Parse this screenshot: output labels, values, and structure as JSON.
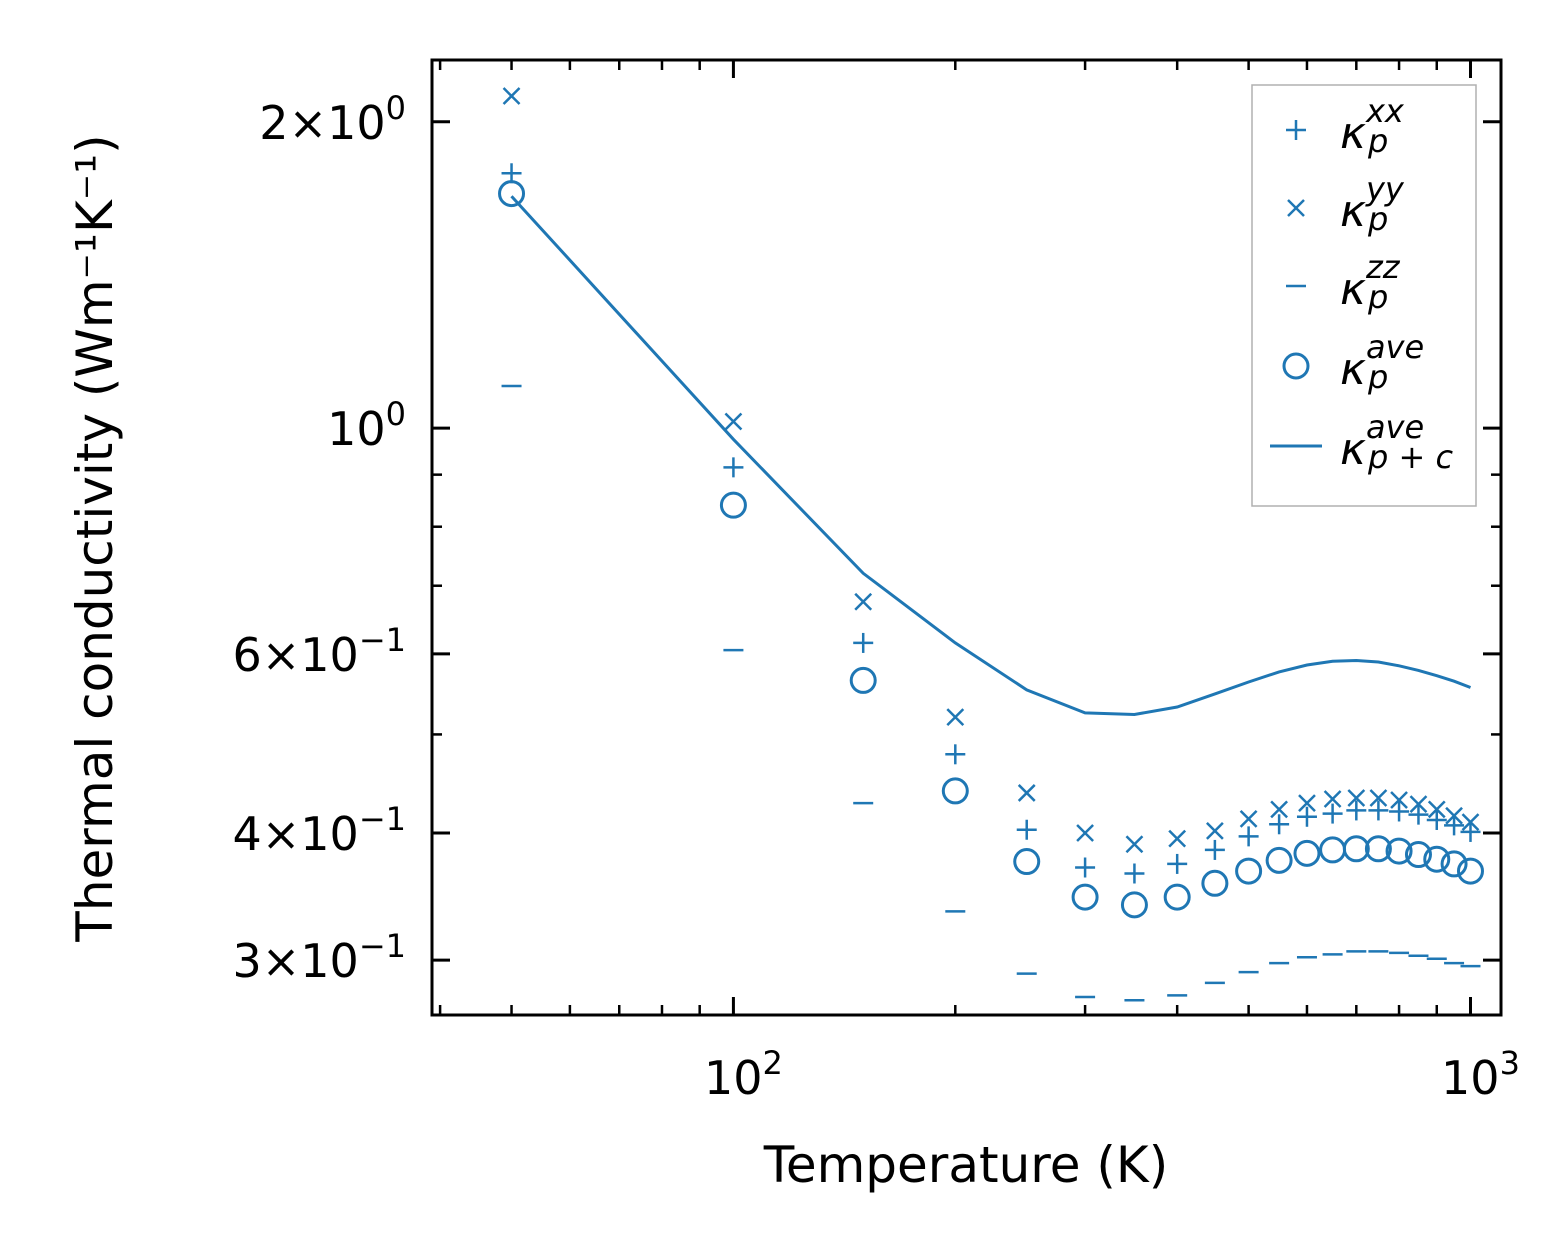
{
  "chart_data": {
    "type": "scatter",
    "title": "",
    "xlabel": "Temperature (K)",
    "ylabel": "Thermal conductivity (Wm⁻¹K⁻¹)",
    "xscale": "log",
    "yscale": "log",
    "xlim": [
      39,
      1100
    ],
    "ylim": [
      0.265,
      2.3
    ],
    "x_major_ticks": [
      {
        "value": 100,
        "base": "10",
        "exp": "2"
      },
      {
        "value": 1000,
        "base": "10",
        "exp": "3"
      }
    ],
    "y_labeled_ticks": [
      {
        "value": 2.0,
        "mant": "2",
        "base": "10",
        "exp": "0"
      },
      {
        "value": 1.0,
        "mant": "",
        "base": "10",
        "exp": "0"
      },
      {
        "value": 0.6,
        "mant": "6",
        "base": "10",
        "exp": "−1"
      },
      {
        "value": 0.4,
        "mant": "4",
        "base": "10",
        "exp": "−1"
      },
      {
        "value": 0.3,
        "mant": "3",
        "base": "10",
        "exp": "−1"
      }
    ],
    "x": [
      50,
      100,
      150,
      200,
      250,
      300,
      350,
      400,
      450,
      500,
      550,
      600,
      650,
      700,
      750,
      800,
      850,
      900,
      950,
      1000
    ],
    "color": "#1f77b4",
    "series": [
      {
        "name": "xx",
        "label_base": "κ",
        "label_sub": "p",
        "label_sup": "xx",
        "marker": "plus",
        "values": [
          1.78,
          0.915,
          0.615,
          0.478,
          0.403,
          0.37,
          0.365,
          0.373,
          0.385,
          0.397,
          0.408,
          0.415,
          0.418,
          0.421,
          0.421,
          0.42,
          0.417,
          0.412,
          0.407,
          0.401
        ]
      },
      {
        "name": "yy",
        "label_base": "κ",
        "label_sub": "p",
        "label_sup": "yy",
        "marker": "x",
        "values": [
          2.12,
          1.015,
          0.675,
          0.52,
          0.438,
          0.4,
          0.39,
          0.395,
          0.402,
          0.413,
          0.422,
          0.428,
          0.432,
          0.433,
          0.433,
          0.431,
          0.427,
          0.422,
          0.416,
          0.41
        ]
      },
      {
        "name": "zz",
        "label_base": "κ",
        "label_sub": "p",
        "label_sup": "zz",
        "marker": "hline",
        "values": [
          1.1,
          0.605,
          0.428,
          0.335,
          0.291,
          0.276,
          0.274,
          0.277,
          0.285,
          0.292,
          0.298,
          0.302,
          0.304,
          0.306,
          0.306,
          0.305,
          0.303,
          0.301,
          0.298,
          0.296
        ]
      },
      {
        "name": "ave",
        "label_base": "κ",
        "label_sub": "p",
        "label_sup": "ave",
        "marker": "circle",
        "values": [
          1.7,
          0.84,
          0.565,
          0.44,
          0.375,
          0.346,
          0.34,
          0.346,
          0.357,
          0.367,
          0.376,
          0.382,
          0.385,
          0.386,
          0.386,
          0.384,
          0.381,
          0.377,
          0.373,
          0.367
        ]
      },
      {
        "name": "ave_p_plus_c",
        "label_base": "κ",
        "label_sub": "p + c",
        "label_sup": "ave",
        "marker": "line",
        "values": [
          1.69,
          0.975,
          0.72,
          0.615,
          0.553,
          0.525,
          0.523,
          0.532,
          0.548,
          0.563,
          0.576,
          0.585,
          0.59,
          0.591,
          0.589,
          0.584,
          0.578,
          0.571,
          0.564,
          0.556
        ]
      }
    ],
    "legend_position": "top-right"
  }
}
